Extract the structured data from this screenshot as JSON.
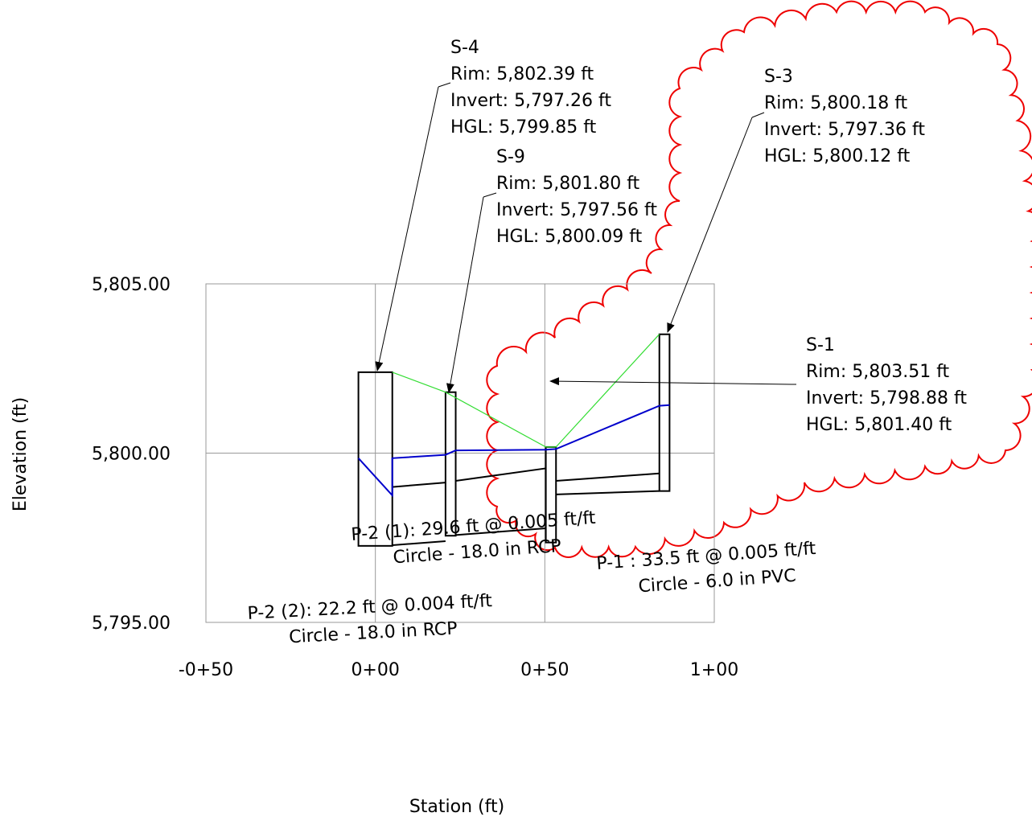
{
  "chart_data": {
    "type": "line",
    "xlabel": "Station (ft)",
    "ylabel": "Elevation (ft)",
    "xlim": [
      -50,
      100
    ],
    "ylim": [
      5795,
      5805
    ],
    "x_ticks": [
      {
        "value": -50,
        "label": "-0+50"
      },
      {
        "value": 0,
        "label": "0+00"
      },
      {
        "value": 50,
        "label": "0+50"
      },
      {
        "value": 100,
        "label": "1+00"
      }
    ],
    "y_ticks": [
      {
        "value": 5805,
        "label": "5,805.00"
      },
      {
        "value": 5800,
        "label": "5,800.00"
      },
      {
        "value": 5795,
        "label": "5,795.00"
      }
    ],
    "grid": true,
    "colors": {
      "energy_grade_line": "#33dd33",
      "hydraulic_grade_line": "#0000cc",
      "structure": "#000000",
      "revision_cloud": "#ee0000",
      "grid": "#999999"
    },
    "structures": [
      {
        "id": "S-4",
        "station": 0,
        "half_width": 5,
        "rim": 5802.39,
        "invert": 5797.26,
        "lines": [
          "S-4",
          "Rim: 5,802.39 ft",
          "Invert: 5,797.26 ft",
          "HGL: 5,799.85 ft"
        ]
      },
      {
        "id": "S-9",
        "station": 22.2,
        "half_width": 1.5,
        "rim": 5801.8,
        "invert": 5797.56,
        "lines": [
          "S-9",
          "Rim: 5,801.80 ft",
          "Invert: 5,797.56 ft",
          "HGL: 5,800.09 ft"
        ]
      },
      {
        "id": "S-3",
        "station": 51.8,
        "half_width": 1.5,
        "rim": 5800.18,
        "invert": 5797.36,
        "lines": [
          "S-3",
          "Rim: 5,800.18 ft",
          "Invert: 5,797.36 ft",
          "HGL: 5,800.12 ft"
        ]
      },
      {
        "id": "S-1",
        "station": 85.3,
        "half_width": 1.5,
        "rim": 5803.51,
        "invert": 5798.88,
        "lines": [
          "S-1",
          "Rim: 5,803.51 ft",
          "Invert: 5,798.88 ft",
          "HGL: 5,801.40 ft"
        ]
      }
    ],
    "pipes": [
      {
        "id": "P-2 (2)",
        "lines": [
          "P-2 (2): 22.2 ft @ 0.004 ft/ft",
          "Circle - 18.0 in RCP"
        ],
        "top": [
          [
            5,
            5799.0
          ],
          [
            20.7,
            5799.13
          ]
        ],
        "bottom": [
          [
            5,
            5797.28
          ],
          [
            20.7,
            5797.4
          ]
        ]
      },
      {
        "id": "P-2 (1)",
        "lines": [
          "P-2 (1): 29.6 ft @ 0.005 ft/ft",
          "Circle - 18.0 in RCP"
        ],
        "top": [
          [
            23.7,
            5799.18
          ],
          [
            50.3,
            5799.55
          ]
        ],
        "bottom": [
          [
            23.7,
            5797.58
          ],
          [
            50.3,
            5797.78
          ]
        ]
      },
      {
        "id": "P-1",
        "lines": [
          "P-1 : 33.5 ft @ 0.005 ft/ft",
          "Circle - 6.0 in PVC"
        ],
        "top": [
          [
            53.3,
            5799.18
          ],
          [
            83.8,
            5799.4
          ]
        ],
        "bottom": [
          [
            53.3,
            5798.78
          ],
          [
            83.8,
            5798.88
          ]
        ]
      }
    ],
    "series": [
      {
        "name": "",
        "key": "egl",
        "x": [
          5,
          20.7,
          50.3,
          53.3,
          83.8
        ],
        "y": [
          5802.39,
          5801.8,
          5800.18,
          5800.18,
          5803.51
        ]
      },
      {
        "name": "",
        "key": "hgl",
        "x": [
          -5,
          5,
          5,
          20.7,
          23.7,
          50.3,
          53.3,
          83.8,
          86.8
        ],
        "y": [
          5799.85,
          5798.75,
          5799.85,
          5799.95,
          5800.08,
          5800.1,
          5800.12,
          5801.4,
          5801.42
        ]
      }
    ]
  }
}
